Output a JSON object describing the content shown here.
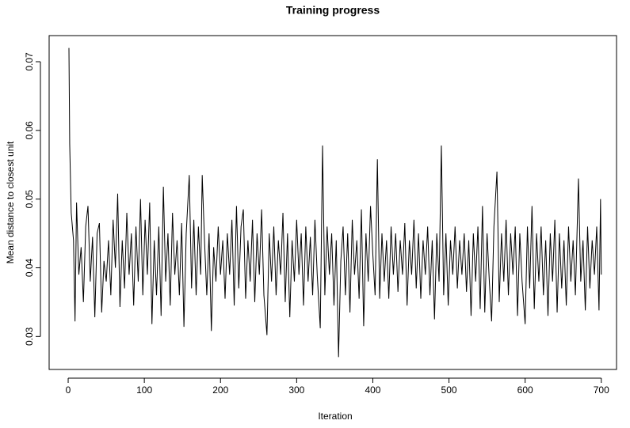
{
  "chart_data": {
    "type": "line",
    "title": "Training progress",
    "x_label": "Iteration",
    "y_label": "Mean distance to closest unit",
    "color": "#000000",
    "xlim": [
      -25,
      720
    ],
    "ylim": [
      0.0252,
      0.0738
    ],
    "xticks": [
      0,
      100,
      200,
      300,
      400,
      500,
      600,
      700
    ],
    "yticks": [
      0.03,
      0.04,
      0.05,
      0.06,
      0.07
    ],
    "x": [
      1,
      2,
      4,
      7,
      9,
      11,
      14,
      17,
      20,
      23,
      26,
      29,
      32,
      35,
      38,
      41,
      44,
      47,
      50,
      53,
      56,
      59,
      62,
      65,
      68,
      71,
      74,
      77,
      80,
      83,
      86,
      89,
      92,
      95,
      98,
      101,
      104,
      107,
      110,
      113,
      116,
      119,
      122,
      125,
      128,
      131,
      134,
      137,
      140,
      143,
      146,
      149,
      152,
      155,
      159,
      162,
      165,
      168,
      171,
      174,
      176,
      179,
      182,
      185,
      188,
      191,
      194,
      197,
      200,
      203,
      206,
      209,
      212,
      215,
      218,
      221,
      224,
      227,
      230,
      233,
      236,
      239,
      242,
      245,
      248,
      251,
      254,
      257,
      261,
      264,
      267,
      270,
      273,
      276,
      279,
      282,
      285,
      288,
      291,
      294,
      297,
      300,
      303,
      306,
      309,
      312,
      315,
      318,
      321,
      324,
      327,
      331,
      334,
      337,
      340,
      343,
      346,
      349,
      352,
      355,
      358,
      361,
      364,
      367,
      370,
      373,
      376,
      379,
      382,
      385,
      388,
      391,
      394,
      397,
      400,
      403,
      406,
      409,
      412,
      415,
      418,
      421,
      424,
      427,
      430,
      433,
      436,
      439,
      442,
      445,
      448,
      451,
      454,
      457,
      460,
      463,
      466,
      469,
      472,
      475,
      478,
      481,
      484,
      487,
      490,
      493,
      496,
      499,
      502,
      505,
      508,
      511,
      514,
      517,
      520,
      523,
      526,
      529,
      532,
      535,
      538,
      541,
      544,
      547,
      550,
      553,
      556,
      559,
      563,
      566,
      569,
      572,
      575,
      578,
      581,
      584,
      587,
      590,
      593,
      596,
      600,
      603,
      606,
      609,
      612,
      615,
      618,
      621,
      624,
      627,
      630,
      633,
      636,
      639,
      642,
      645,
      648,
      651,
      654,
      657,
      660,
      663,
      666,
      670,
      673,
      676,
      679,
      682,
      685,
      688,
      691,
      694,
      697,
      699,
      700
    ],
    "values": [
      0.072,
      0.058,
      0.048,
      0.044,
      0.0322,
      0.0495,
      0.039,
      0.043,
      0.035,
      0.046,
      0.049,
      0.038,
      0.0445,
      0.0328,
      0.045,
      0.0465,
      0.0335,
      0.041,
      0.038,
      0.044,
      0.036,
      0.047,
      0.04,
      0.0508,
      0.0343,
      0.044,
      0.037,
      0.048,
      0.039,
      0.045,
      0.0345,
      0.046,
      0.038,
      0.05,
      0.036,
      0.047,
      0.039,
      0.0495,
      0.0318,
      0.044,
      0.036,
      0.046,
      0.033,
      0.0518,
      0.038,
      0.045,
      0.0345,
      0.048,
      0.039,
      0.044,
      0.036,
      0.0465,
      0.0314,
      0.045,
      0.0535,
      0.037,
      0.047,
      0.036,
      0.046,
      0.039,
      0.0535,
      0.044,
      0.036,
      0.045,
      0.0308,
      0.043,
      0.038,
      0.046,
      0.039,
      0.044,
      0.0355,
      0.045,
      0.039,
      0.047,
      0.0345,
      0.049,
      0.037,
      0.046,
      0.0485,
      0.0355,
      0.044,
      0.038,
      0.047,
      0.035,
      0.045,
      0.039,
      0.0485,
      0.036,
      0.0302,
      0.045,
      0.038,
      0.046,
      0.036,
      0.044,
      0.039,
      0.048,
      0.035,
      0.045,
      0.0328,
      0.044,
      0.038,
      0.047,
      0.039,
      0.045,
      0.0345,
      0.046,
      0.038,
      0.0445,
      0.036,
      0.047,
      0.039,
      0.0312,
      0.0578,
      0.036,
      0.046,
      0.039,
      0.045,
      0.0345,
      0.044,
      0.027,
      0.041,
      0.046,
      0.036,
      0.045,
      0.0335,
      0.047,
      0.039,
      0.044,
      0.0355,
      0.0485,
      0.0315,
      0.045,
      0.038,
      0.049,
      0.042,
      0.036,
      0.0558,
      0.0355,
      0.045,
      0.038,
      0.044,
      0.0355,
      0.046,
      0.039,
      0.045,
      0.0365,
      0.044,
      0.039,
      0.0465,
      0.0345,
      0.044,
      0.039,
      0.047,
      0.037,
      0.045,
      0.0355,
      0.044,
      0.039,
      0.046,
      0.036,
      0.044,
      0.0325,
      0.045,
      0.038,
      0.0578,
      0.036,
      0.045,
      0.0345,
      0.044,
      0.039,
      0.046,
      0.037,
      0.044,
      0.039,
      0.045,
      0.0365,
      0.044,
      0.033,
      0.045,
      0.038,
      0.046,
      0.034,
      0.049,
      0.0335,
      0.045,
      0.038,
      0.0322,
      0.046,
      0.054,
      0.035,
      0.045,
      0.038,
      0.047,
      0.036,
      0.045,
      0.039,
      0.046,
      0.033,
      0.045,
      0.038,
      0.0318,
      0.046,
      0.037,
      0.049,
      0.034,
      0.045,
      0.038,
      0.046,
      0.036,
      0.044,
      0.033,
      0.045,
      0.038,
      0.047,
      0.0335,
      0.045,
      0.037,
      0.044,
      0.0345,
      0.046,
      0.038,
      0.044,
      0.036,
      0.053,
      0.038,
      0.044,
      0.0338,
      0.046,
      0.037,
      0.044,
      0.039,
      0.046,
      0.0338,
      0.05,
      0.039
    ]
  }
}
